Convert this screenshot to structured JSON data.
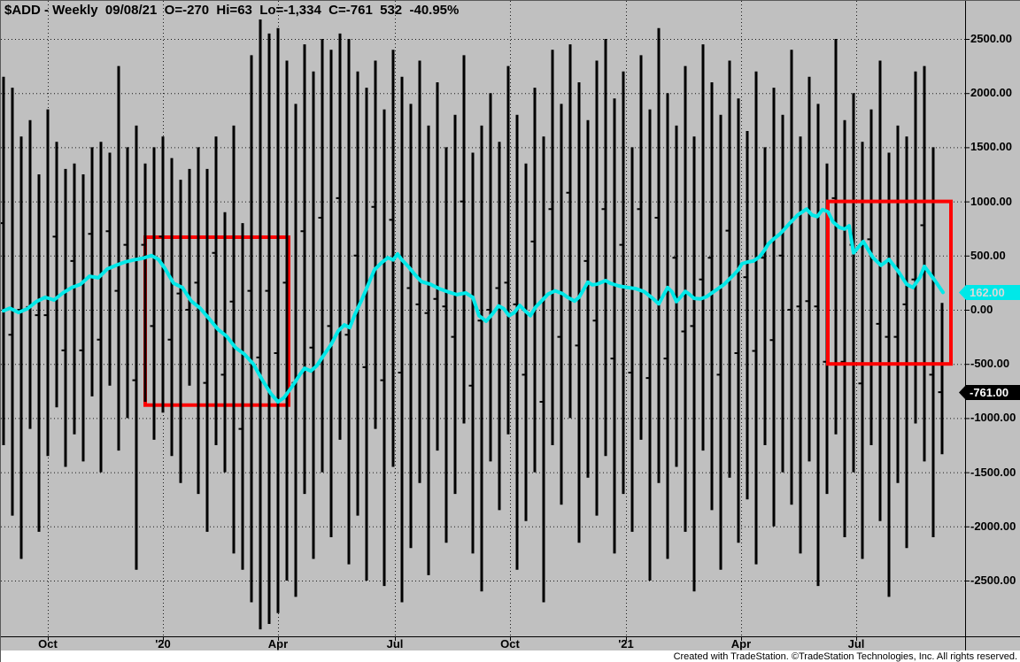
{
  "title": "$ADD - Weekly  09/08/21  O=-270  Hi=63  Lo=-1,334  C=-761  532  -40.95%",
  "title_fields": {
    "symbol": "$ADD",
    "interval": "Weekly",
    "date": "09/08/21",
    "open": "-270",
    "hi": "63",
    "lo": "-1,334",
    "close": "-761",
    "extra": "532",
    "pct_change": "-40.95%"
  },
  "footer": {
    "text": "Created with TradeStation. ©TradeStation Technologies, Inc. All rights reserved."
  },
  "colors": {
    "background": "#C0C0C0",
    "bar": "#000000",
    "grid": "#1a1a1a",
    "ma_line": "#00E8E8",
    "annotation": "#FF0000",
    "axis": "#000000",
    "ma_badge_bg": "#00E8E8",
    "ma_badge_text": "#d9d9d9",
    "close_badge_bg": "#000000",
    "close_badge_text": "#ffffff",
    "footer_bg": "#ffffff"
  },
  "y_axis": {
    "labels": [
      {
        "value": 2500,
        "text": "2500.00"
      },
      {
        "value": 2000,
        "text": "2000.00"
      },
      {
        "value": 1500,
        "text": "1500.00"
      },
      {
        "value": 1000,
        "text": "1000.00"
      },
      {
        "value": 500,
        "text": "500.00"
      },
      {
        "value": 0,
        "text": "0.00"
      },
      {
        "value": -500,
        "text": "-500.00"
      },
      {
        "value": -1000,
        "text": "-1000.00"
      },
      {
        "value": -1500,
        "text": "-1500.00"
      },
      {
        "value": -2000,
        "text": "-2000.00"
      },
      {
        "value": -2500,
        "text": "-2500.00"
      }
    ],
    "ma_badge": {
      "text": "162.00",
      "value": 162
    },
    "close_badge": {
      "text": "-761.00",
      "value": -761
    }
  },
  "x_axis": {
    "ticks": [
      {
        "label": "Oct",
        "week": 5
      },
      {
        "label": "'20",
        "week": 18
      },
      {
        "label": "Apr",
        "week": 31
      },
      {
        "label": "Jul",
        "week": 44.2
      },
      {
        "label": "Oct",
        "week": 57.2
      },
      {
        "label": "'21",
        "week": 70.3
      },
      {
        "label": "Apr",
        "week": 83.3
      },
      {
        "label": "Jul",
        "week": 96.3
      }
    ]
  },
  "chart_data": {
    "type": "bar",
    "subtype": "weekly high-low bars with close tick, plus moving-average line",
    "title": "$ADD - Weekly",
    "x_unit": "week index (0 = ~Sep 2019, 106 = 09/08/21)",
    "y_gridline_step": 500,
    "ylim_labeled": [
      -2500,
      2500
    ],
    "grid": "dotted",
    "series": {
      "name": "$ADD weekly range bars (values estimated from gridlines)",
      "highs": [
        2150,
        2050,
        1600,
        1750,
        1250,
        1850,
        1550,
        1300,
        1350,
        1250,
        1500,
        1550,
        1450,
        2250,
        1500,
        1700,
        1350,
        1500,
        1600,
        1400,
        1200,
        1300,
        1500,
        1300,
        1600,
        900,
        1700,
        800,
        2350,
        2680,
        2550,
        2600,
        2300,
        1900,
        2450,
        2200,
        2500,
        2400,
        2550,
        2500,
        2200,
        2050,
        2300,
        1850,
        2400,
        2150,
        1900,
        2300,
        1700,
        2100,
        1500,
        1800,
        2350,
        1450,
        1700,
        2000,
        1550,
        2250,
        1800,
        1350,
        2050,
        1600,
        2400,
        1900,
        2450,
        2100,
        1750,
        2300,
        2500,
        1950,
        2200,
        1500,
        2350,
        1850,
        2600,
        2000,
        1700,
        2250,
        1600,
        2450,
        2100,
        1800,
        2300,
        1950,
        1650,
        2200,
        1500,
        2050,
        1800,
        2400,
        1600,
        2150,
        1900,
        1350,
        2500,
        1750,
        2000,
        1550,
        1850,
        2300,
        1450,
        1700,
        1600,
        2200,
        2250,
        1500,
        63
      ],
      "lows": [
        -1250,
        -1900,
        -2300,
        -1100,
        -2050,
        -1350,
        -900,
        -1450,
        -1150,
        -1400,
        -800,
        -1500,
        -700,
        -1300,
        -1000,
        -2400,
        -850,
        -1200,
        -950,
        -1350,
        -1600,
        -700,
        -1700,
        -2050,
        -1250,
        -1500,
        -2250,
        -2400,
        -2700,
        -2950,
        -2900,
        -2800,
        -2500,
        -2650,
        -1700,
        -2300,
        -1500,
        -2100,
        -1200,
        -2350,
        -1900,
        -2500,
        -1100,
        -2550,
        -1450,
        -2700,
        -2200,
        -1600,
        -2450,
        -1300,
        -2150,
        -1700,
        -1050,
        -2250,
        -2600,
        -1400,
        -1850,
        -1150,
        -2400,
        -1950,
        -1500,
        -2700,
        -1250,
        -1800,
        -1000,
        -2150,
        -1550,
        -1900,
        -1350,
        -2250,
        -1700,
        -2050,
        -1200,
        -2500,
        -1600,
        -2300,
        -1450,
        -2050,
        -2600,
        -1300,
        -1850,
        -2400,
        -1550,
        -2150,
        -1750,
        -2350,
        -1250,
        -2000,
        -1500,
        -1800,
        -2250,
        -1400,
        -2550,
        -1700,
        -1150,
        -2100,
        -1500,
        -2300,
        -1250,
        -1950,
        -2650,
        -1600,
        -2200,
        -1050,
        -1400,
        -2100,
        -1334
      ],
      "closes": [
        800,
        -230,
        0,
        25,
        -50,
        -50,
        675,
        -375,
        450,
        -375,
        700,
        -275,
        725,
        175,
        600,
        -650,
        600,
        -150,
        675,
        -275,
        150,
        0,
        250,
        -675,
        525,
        -600,
        75,
        -1100,
        175,
        -440,
        175,
        -400,
        250,
        -675,
        725,
        -350,
        850,
        -150,
        1030,
        -230,
        500,
        -530,
        950,
        -650,
        830,
        -580,
        200,
        50,
        -30,
        100,
        30,
        -250,
        1000,
        -700,
        -100,
        0,
        200,
        250,
        50,
        -600,
        630,
        -850,
        930,
        -250,
        1080,
        -330,
        450,
        -100,
        930,
        -450,
        600,
        -580,
        930,
        -630,
        850,
        -450,
        480,
        -200,
        -150,
        280,
        480,
        -600,
        730,
        -400,
        300,
        -380,
        480,
        -280,
        500,
        0,
        30,
        80,
        30,
        -480,
        1030,
        -480,
        600,
        -680,
        650,
        -130,
        -250,
        -250,
        50,
        280,
        780,
        -600,
        -761
      ]
    },
    "ma_line": {
      "name": "moving average (cyan)",
      "last_value": 162,
      "points": [
        [
          0,
          -10
        ],
        [
          0.7,
          15
        ],
        [
          1.7,
          -25
        ],
        [
          2.7,
          10
        ],
        [
          3.7,
          75
        ],
        [
          4.7,
          115
        ],
        [
          5.7,
          90
        ],
        [
          6.7,
          155
        ],
        [
          7.7,
          205
        ],
        [
          8.7,
          235
        ],
        [
          9.7,
          310
        ],
        [
          10.7,
          295
        ],
        [
          11.7,
          375
        ],
        [
          12.7,
          410
        ],
        [
          13.7,
          440
        ],
        [
          14.7,
          460
        ],
        [
          15.7,
          475
        ],
        [
          16.7,
          500
        ],
        [
          17.5,
          465
        ],
        [
          18.2,
          385
        ],
        [
          19.2,
          245
        ],
        [
          20.2,
          205
        ],
        [
          21.2,
          80
        ],
        [
          22.2,
          15
        ],
        [
          23.2,
          -80
        ],
        [
          24.2,
          -180
        ],
        [
          25.2,
          -245
        ],
        [
          26.2,
          -350
        ],
        [
          27.2,
          -410
        ],
        [
          28.2,
          -500
        ],
        [
          29.2,
          -645
        ],
        [
          30.2,
          -775
        ],
        [
          31,
          -850
        ],
        [
          31.7,
          -810
        ],
        [
          32.7,
          -695
        ],
        [
          33.5,
          -595
        ],
        [
          34,
          -540
        ],
        [
          34.7,
          -565
        ],
        [
          35.4,
          -515
        ],
        [
          36.2,
          -415
        ],
        [
          37,
          -320
        ],
        [
          37.8,
          -195
        ],
        [
          38.5,
          -140
        ],
        [
          39.1,
          -165
        ],
        [
          39.7,
          -40
        ],
        [
          40.5,
          100
        ],
        [
          41.2,
          235
        ],
        [
          41.9,
          370
        ],
        [
          42.7,
          435
        ],
        [
          43.4,
          480
        ],
        [
          44,
          460
        ],
        [
          44.5,
          515
        ],
        [
          45,
          460
        ],
        [
          45.7,
          400
        ],
        [
          46.5,
          320
        ],
        [
          47.2,
          260
        ],
        [
          48.2,
          235
        ],
        [
          49.2,
          195
        ],
        [
          50.2,
          165
        ],
        [
          51.2,
          140
        ],
        [
          52.2,
          155
        ],
        [
          53,
          115
        ],
        [
          53.7,
          -55
        ],
        [
          54.5,
          -105
        ],
        [
          55.2,
          -40
        ],
        [
          55.9,
          35
        ],
        [
          56.5,
          10
        ],
        [
          57.1,
          -55
        ],
        [
          57.7,
          -25
        ],
        [
          58.3,
          40
        ],
        [
          58.9,
          -10
        ],
        [
          59.5,
          -55
        ],
        [
          60.1,
          25
        ],
        [
          60.7,
          75
        ],
        [
          61.5,
          145
        ],
        [
          62.3,
          175
        ],
        [
          63.1,
          150
        ],
        [
          63.7,
          115
        ],
        [
          64.5,
          80
        ],
        [
          65,
          115
        ],
        [
          66,
          255
        ],
        [
          66.5,
          230
        ],
        [
          67,
          235
        ],
        [
          68,
          270
        ],
        [
          68.5,
          245
        ],
        [
          69.5,
          220
        ],
        [
          70.5,
          205
        ],
        [
          71.4,
          195
        ],
        [
          72.4,
          165
        ],
        [
          73.4,
          100
        ],
        [
          74,
          55
        ],
        [
          75,
          205
        ],
        [
          75.5,
          165
        ],
        [
          76,
          75
        ],
        [
          76.5,
          120
        ],
        [
          77,
          170
        ],
        [
          77.5,
          140
        ],
        [
          78,
          105
        ],
        [
          78.7,
          100
        ],
        [
          79.4,
          120
        ],
        [
          80,
          155
        ],
        [
          80.7,
          195
        ],
        [
          81.4,
          235
        ],
        [
          82,
          285
        ],
        [
          82.5,
          325
        ],
        [
          83,
          370
        ],
        [
          83.4,
          425
        ],
        [
          84,
          440
        ],
        [
          84.7,
          450
        ],
        [
          85.4,
          490
        ],
        [
          85.9,
          545
        ],
        [
          86.4,
          610
        ],
        [
          87,
          655
        ],
        [
          87.7,
          700
        ],
        [
          88.7,
          790
        ],
        [
          89.7,
          875
        ],
        [
          90.7,
          930
        ],
        [
          91.3,
          875
        ],
        [
          91.9,
          860
        ],
        [
          92.5,
          925
        ],
        [
          93.1,
          905
        ],
        [
          93.7,
          810
        ],
        [
          94.4,
          760
        ],
        [
          95,
          745
        ],
        [
          95.5,
          775
        ],
        [
          96,
          525
        ],
        [
          97.1,
          630
        ],
        [
          98.2,
          480
        ],
        [
          99.1,
          410
        ],
        [
          100,
          465
        ],
        [
          101,
          360
        ],
        [
          102,
          235
        ],
        [
          102.7,
          205
        ],
        [
          103.5,
          300
        ],
        [
          104,
          400
        ],
        [
          104.7,
          325
        ],
        [
          105.4,
          245
        ],
        [
          106.1,
          160
        ]
      ]
    },
    "annotations": [
      {
        "shape": "rect",
        "color": "#FF0000",
        "weeks": [
          16,
          32.2
        ],
        "values": [
          670,
          -880
        ],
        "layer": "under_bars"
      },
      {
        "shape": "rect",
        "color": "#FF0000",
        "weeks": [
          93.1,
          107
        ],
        "values": [
          1000,
          -500
        ],
        "layer": "over_bars"
      }
    ]
  }
}
